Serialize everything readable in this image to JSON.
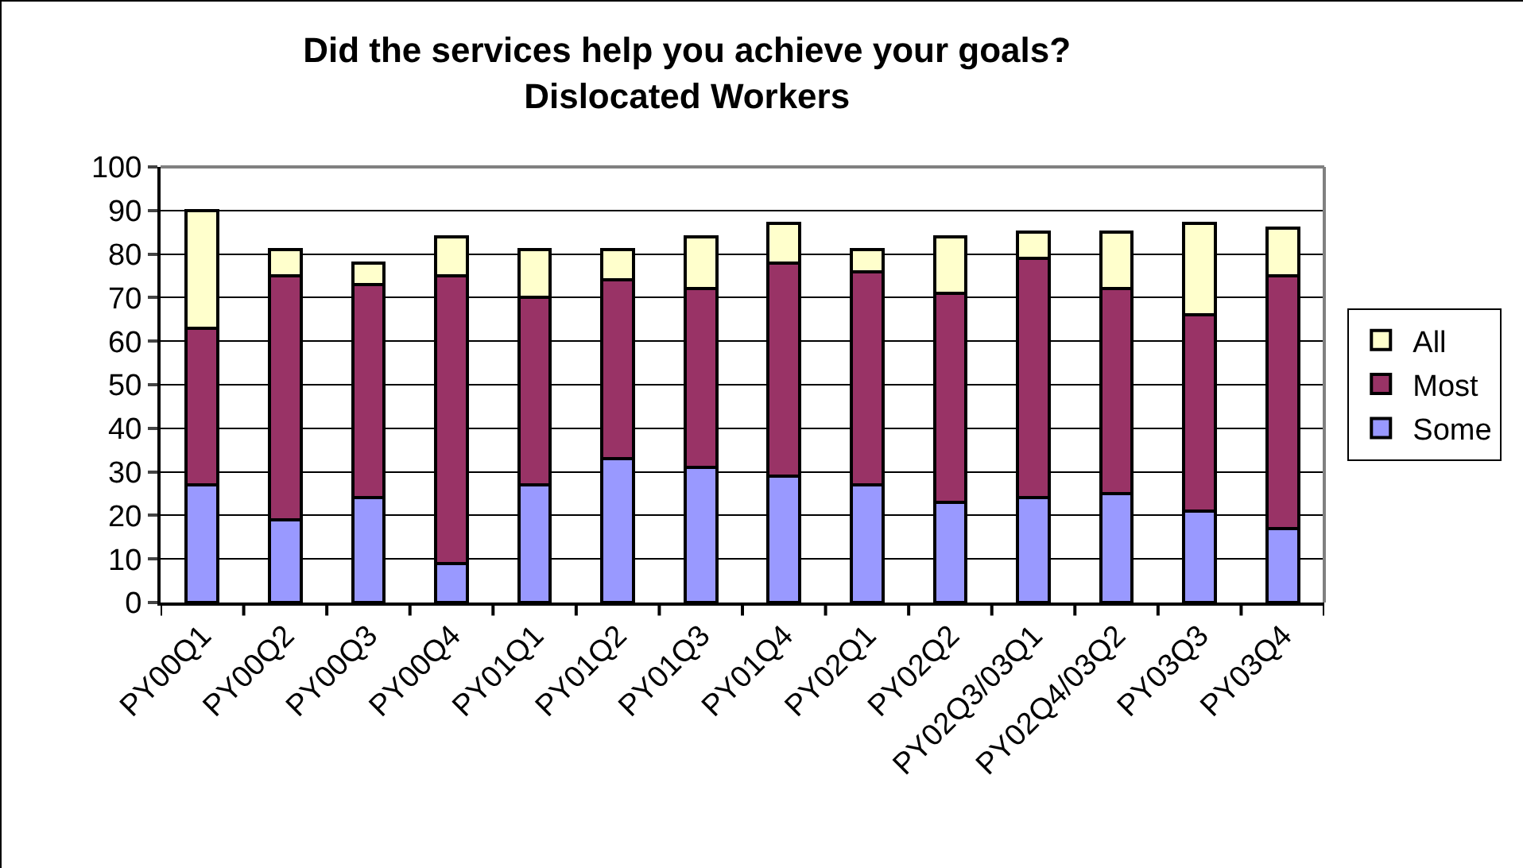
{
  "chart_data": {
    "type": "bar",
    "stacked": true,
    "title": "Did the services help you achieve your goals?\nDislocated Workers",
    "categories": [
      "PY00Q1",
      "PY00Q2",
      "PY00Q3",
      "PY00Q4",
      "PY01Q1",
      "PY01Q2",
      "PY01Q3",
      "PY01Q4",
      "PY02Q1",
      "PY02Q2",
      "PY02Q3/03Q1",
      "PY02Q4/03Q2",
      "PY03Q3",
      "PY03Q4"
    ],
    "series": [
      {
        "name": "Some",
        "color": "#9999ff",
        "values": [
          27,
          19,
          24,
          9,
          27,
          33,
          31,
          29,
          27,
          23,
          24,
          25,
          21,
          17
        ]
      },
      {
        "name": "Most",
        "color": "#993366",
        "values": [
          36,
          56,
          49,
          66,
          43,
          41,
          41,
          49,
          49,
          48,
          55,
          47,
          45,
          58
        ]
      },
      {
        "name": "All",
        "color": "#ffffcc",
        "values": [
          27,
          6,
          5,
          9,
          11,
          7,
          12,
          9,
          5,
          13,
          6,
          13,
          21,
          11
        ]
      }
    ],
    "ylim": [
      0,
      100
    ],
    "yticks": [
      0,
      10,
      20,
      30,
      40,
      50,
      60,
      70,
      80,
      90,
      100
    ],
    "grid": "y",
    "legend": "right"
  }
}
